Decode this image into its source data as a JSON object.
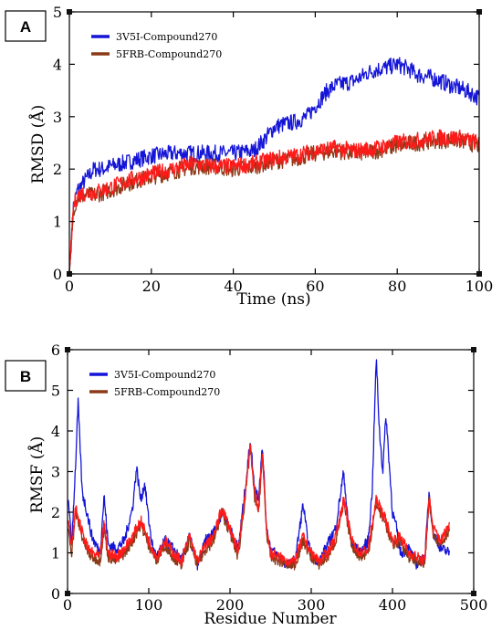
{
  "chart_data": [
    {
      "panel_label": "A",
      "type": "line",
      "xlabel": "Time (ns)",
      "ylabel": "RMSD (Å)",
      "xlim": [
        0,
        100
      ],
      "ylim": [
        0,
        5
      ],
      "xticks": [
        "0",
        "20",
        "40",
        "60",
        "80",
        "100"
      ],
      "yticks": [
        "0",
        "1",
        "2",
        "3",
        "4",
        "5"
      ],
      "legend_position": "top-left",
      "series": [
        {
          "name": "3V5I-Compound270",
          "color": "#1515d8",
          "x": [
            0,
            1,
            2,
            4,
            6,
            8,
            10,
            15,
            20,
            25,
            30,
            35,
            40,
            45,
            48,
            50,
            52,
            55,
            58,
            60,
            63,
            65,
            68,
            70,
            73,
            75,
            78,
            80,
            83,
            85,
            88,
            90,
            93,
            95,
            98,
            100
          ],
          "y": [
            0,
            1.3,
            1.6,
            1.8,
            2.0,
            2.0,
            2.05,
            2.15,
            2.25,
            2.3,
            2.3,
            2.3,
            2.3,
            2.35,
            2.6,
            2.8,
            2.85,
            2.9,
            3.0,
            3.2,
            3.5,
            3.6,
            3.65,
            3.7,
            3.85,
            3.9,
            3.95,
            4.0,
            3.9,
            3.8,
            3.75,
            3.7,
            3.6,
            3.55,
            3.45,
            3.35
          ]
        },
        {
          "name": "5FRB-Compound270",
          "color": "#8a3a17",
          "x": [
            0,
            1,
            2,
            4,
            6,
            8,
            10,
            15,
            20,
            25,
            30,
            35,
            40,
            45,
            50,
            55,
            60,
            65,
            70,
            75,
            80,
            85,
            90,
            95,
            100
          ],
          "y": [
            0,
            1.25,
            1.45,
            1.5,
            1.5,
            1.55,
            1.6,
            1.75,
            1.85,
            1.95,
            2.05,
            2.05,
            2.0,
            2.05,
            2.15,
            2.2,
            2.3,
            2.35,
            2.3,
            2.35,
            2.45,
            2.5,
            2.55,
            2.55,
            2.45
          ]
        },
        {
          "name": "",
          "color": "#ff1a1a",
          "x": [
            0,
            1,
            2,
            4,
            6,
            8,
            10,
            15,
            20,
            25,
            30,
            35,
            40,
            45,
            50,
            55,
            60,
            65,
            70,
            75,
            80,
            85,
            90,
            95,
            100
          ],
          "y": [
            0,
            1.3,
            1.5,
            1.55,
            1.55,
            1.6,
            1.65,
            1.8,
            1.9,
            2.0,
            2.1,
            2.05,
            2.05,
            2.1,
            2.2,
            2.25,
            2.35,
            2.4,
            2.35,
            2.4,
            2.5,
            2.55,
            2.6,
            2.6,
            2.5
          ]
        }
      ]
    },
    {
      "panel_label": "B",
      "type": "line",
      "xlabel": "Residue Number",
      "ylabel": "RMSF (Å)",
      "xlim": [
        0,
        500
      ],
      "ylim": [
        0,
        6
      ],
      "xticks": [
        "0",
        "100",
        "200",
        "300",
        "400",
        "500"
      ],
      "yticks": [
        "0",
        "1",
        "2",
        "3",
        "4",
        "5",
        "6"
      ],
      "legend_position": "top-left",
      "series": [
        {
          "name": "3V5I-Compound270",
          "color": "#1515d8",
          "x": [
            1,
            5,
            10,
            13,
            18,
            25,
            30,
            40,
            45,
            50,
            60,
            70,
            80,
            85,
            90,
            95,
            100,
            105,
            110,
            120,
            130,
            140,
            150,
            160,
            170,
            180,
            190,
            200,
            210,
            220,
            225,
            230,
            235,
            240,
            245,
            250,
            260,
            270,
            280,
            290,
            295,
            300,
            310,
            320,
            330,
            340,
            345,
            350,
            360,
            370,
            375,
            380,
            384,
            388,
            392,
            396,
            400,
            405,
            410,
            420,
            430,
            440,
            445,
            450,
            460,
            470
          ],
          "y": [
            2.3,
            1.2,
            3.2,
            4.7,
            2.5,
            1.9,
            1.4,
            1.0,
            2.4,
            1.2,
            1.1,
            1.3,
            2.1,
            3.1,
            2.3,
            2.7,
            1.8,
            1.1,
            0.9,
            1.3,
            1.1,
            0.8,
            1.4,
            0.7,
            1.3,
            1.5,
            2.0,
            1.6,
            1.1,
            2.8,
            3.8,
            2.6,
            2.4,
            3.6,
            1.6,
            1.1,
            0.9,
            0.7,
            0.8,
            2.2,
            1.4,
            0.9,
            0.8,
            1.2,
            1.6,
            3.0,
            1.8,
            1.2,
            1.0,
            1.3,
            2.5,
            5.8,
            4.0,
            3.0,
            4.4,
            3.2,
            2.0,
            1.6,
            1.0,
            1.1,
            0.7,
            0.9,
            2.5,
            1.5,
            1.1,
            1.0
          ]
        },
        {
          "name": "5FRB-Compound270",
          "color": "#8a3a17",
          "x": [
            1,
            5,
            10,
            18,
            25,
            30,
            40,
            45,
            50,
            60,
            70,
            80,
            90,
            100,
            110,
            120,
            130,
            140,
            150,
            160,
            170,
            180,
            190,
            200,
            210,
            220,
            225,
            230,
            235,
            240,
            245,
            250,
            260,
            270,
            280,
            290,
            300,
            310,
            320,
            330,
            340,
            350,
            360,
            370,
            380,
            390,
            400,
            410,
            420,
            430,
            440,
            445,
            450,
            460,
            470
          ],
          "y": [
            1.6,
            1.0,
            2.0,
            1.4,
            1.0,
            0.9,
            0.8,
            1.6,
            0.9,
            0.8,
            1.0,
            1.3,
            1.7,
            1.2,
            0.8,
            1.2,
            0.9,
            0.7,
            1.3,
            0.7,
            1.1,
            1.3,
            2.0,
            1.5,
            0.9,
            2.6,
            3.6,
            2.4,
            2.0,
            3.4,
            1.5,
            0.9,
            0.8,
            0.7,
            0.7,
            1.3,
            0.9,
            0.7,
            0.9,
            1.3,
            2.2,
            1.2,
            0.9,
            1.0,
            2.2,
            1.8,
            1.2,
            1.3,
            0.9,
            0.8,
            0.7,
            2.3,
            1.5,
            1.2,
            1.6
          ]
        },
        {
          "name": "",
          "color": "#ff1a1a",
          "x": [
            1,
            5,
            10,
            18,
            25,
            30,
            40,
            45,
            50,
            60,
            70,
            80,
            90,
            100,
            110,
            120,
            130,
            140,
            150,
            160,
            170,
            180,
            190,
            200,
            210,
            220,
            225,
            230,
            235,
            240,
            245,
            250,
            260,
            270,
            280,
            290,
            300,
            310,
            320,
            330,
            340,
            350,
            360,
            370,
            380,
            390,
            400,
            410,
            420,
            430,
            440,
            445,
            450,
            460,
            470
          ],
          "y": [
            1.8,
            1.1,
            2.1,
            1.5,
            1.1,
            1.0,
            0.9,
            1.7,
            1.0,
            0.9,
            1.1,
            1.4,
            1.8,
            1.3,
            0.9,
            1.3,
            1.0,
            0.8,
            1.4,
            0.8,
            1.2,
            1.4,
            2.1,
            1.6,
            1.0,
            2.7,
            3.7,
            2.5,
            2.1,
            3.5,
            1.6,
            1.0,
            0.9,
            0.8,
            0.8,
            1.4,
            1.0,
            0.8,
            1.0,
            1.4,
            2.3,
            1.3,
            1.0,
            1.1,
            2.3,
            1.9,
            1.3,
            1.4,
            1.0,
            0.9,
            0.8,
            2.4,
            1.6,
            1.3,
            1.7
          ]
        }
      ]
    }
  ]
}
